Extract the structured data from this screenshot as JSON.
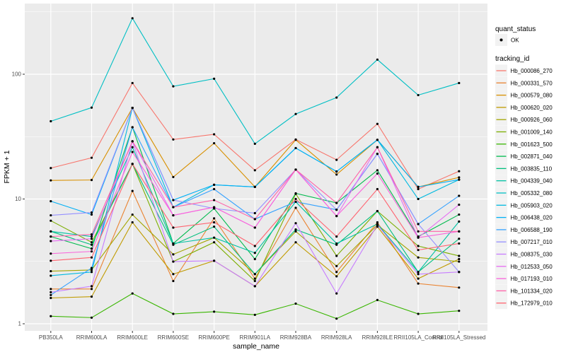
{
  "figure": {
    "kind": "ggplot2 line chart",
    "background": "#FFFFFF"
  },
  "axes": {
    "x_title": "sample_name",
    "y_title": "FPKM + 1",
    "y_tick_labels": [
      "1",
      "10",
      "100"
    ]
  },
  "legend": {
    "quant_status": {
      "title": "quant_status",
      "items": [
        {
          "label": "OK",
          "marker": "point",
          "color": "#000000"
        }
      ]
    },
    "tracking_id": {
      "title": "tracking_id"
    }
  },
  "chart_data": {
    "type": "line",
    "title": "",
    "xlabel": "sample_name",
    "ylabel": "FPKM + 1",
    "y_scale": "log10",
    "y_ticks": [
      1,
      10,
      100
    ],
    "y_minor_ticks": [
      3.1623,
      31.623,
      316.23
    ],
    "ylim": [
      1,
      350
    ],
    "grid": true,
    "legend_position": "right",
    "panel_bg": "#EBEBEB",
    "grid_color": "#FFFFFF",
    "tick_color": "#333333",
    "tick_label_color": "#4D4D4D",
    "point_color": "#000000",
    "legend_key_bg": "#F2F2F2",
    "x_categories": [
      "PB350LA",
      "RRIM600LA",
      "RRIM600LE",
      "RRIM600SE",
      "RRIM600PE",
      "RRIM901LA",
      "RRIM928BA",
      "RRIM928LA",
      "RRIM928LE",
      "RRII105LA_Control",
      "RRII105LA_Stressed"
    ],
    "series": [
      {
        "name": "Hb_000086_270",
        "color": "#F8766D",
        "values": [
          17.7,
          21.4,
          85,
          30,
          33,
          17,
          30,
          20.6,
          40,
          12,
          16.7
        ]
      },
      {
        "name": "Hb_000331_570",
        "color": "#EA8331",
        "values": [
          1.9,
          1.9,
          11.6,
          2.2,
          7.0,
          2.3,
          8.5,
          2.6,
          6.5,
          2.1,
          1.95
        ]
      },
      {
        "name": "Hb_000579_080",
        "color": "#D89000",
        "values": [
          14.1,
          14.2,
          53.7,
          15,
          28,
          12.5,
          29.8,
          15.7,
          29.8,
          12.5,
          14.9
        ]
      },
      {
        "name": "Hb_000620_020",
        "color": "#C09B00",
        "values": [
          1.61,
          1.65,
          6.5,
          2.5,
          3.2,
          2.0,
          4.5,
          2.4,
          6.0,
          2.3,
          3.3
        ]
      },
      {
        "name": "Hb_000926_060",
        "color": "#A3A500",
        "values": [
          2.64,
          2.7,
          7.5,
          3.6,
          4.9,
          2.5,
          5.5,
          2.9,
          6.2,
          3.4,
          3.15
        ]
      },
      {
        "name": "Hb_001009_140",
        "color": "#7CAE00",
        "values": [
          6.7,
          4.5,
          19.1,
          3.15,
          4.5,
          2.2,
          11,
          3.5,
          8.0,
          4.2,
          3.5
        ]
      },
      {
        "name": "Hb_001623_500",
        "color": "#39B600",
        "values": [
          1.15,
          1.12,
          1.75,
          1.2,
          1.25,
          1.18,
          1.45,
          1.1,
          1.55,
          1.2,
          1.27
        ]
      },
      {
        "name": "Hb_002871_040",
        "color": "#00BB4E",
        "values": [
          5.0,
          4.0,
          37.6,
          4.4,
          8.4,
          3.3,
          11.1,
          9.3,
          17,
          5.0,
          7.5
        ]
      },
      {
        "name": "Hb_003835_110",
        "color": "#00BF7D",
        "values": [
          5.5,
          4.3,
          19.1,
          4.3,
          6.0,
          2.5,
          5.7,
          4.3,
          8.0,
          2.6,
          4.8
        ]
      },
      {
        "name": "Hb_004339_040",
        "color": "#00C1A3",
        "values": [
          5.5,
          5.0,
          26,
          4.4,
          4.9,
          3.7,
          9.5,
          4.4,
          6.3,
          2.6,
          6.6
        ]
      },
      {
        "name": "Hb_005332_080",
        "color": "#00BFC4",
        "values": [
          42,
          54,
          281,
          80,
          92,
          27.7,
          48,
          65,
          131,
          68,
          85
        ]
      },
      {
        "name": "Hb_005903_020",
        "color": "#00BAE0",
        "values": [
          2.43,
          2.6,
          53.7,
          8.6,
          13,
          12.5,
          25.6,
          16.6,
          29.8,
          10,
          14.3
        ]
      },
      {
        "name": "Hb_006438_020",
        "color": "#00B0F6",
        "values": [
          9.6,
          7.5,
          53.7,
          9.8,
          13,
          12.5,
          25.6,
          16.6,
          29.8,
          12.5,
          14.3
        ]
      },
      {
        "name": "Hb_006588_190",
        "color": "#35A2FF",
        "values": [
          1.7,
          2.8,
          37.6,
          8.6,
          12,
          6.9,
          9.5,
          8.2,
          23,
          6.3,
          10.6
        ]
      },
      {
        "name": "Hb_007217_010",
        "color": "#9590FF",
        "values": [
          7.4,
          7.8,
          53.7,
          9.8,
          8.4,
          7.7,
          17.2,
          8.2,
          23,
          6.3,
          2.6
        ]
      },
      {
        "name": "Hb_008375_030",
        "color": "#C77CFF",
        "values": [
          1.79,
          2.0,
          29,
          3.15,
          3.2,
          2.0,
          6.4,
          1.75,
          6.2,
          2.5,
          2.6
        ]
      },
      {
        "name": "Hb_012533_050",
        "color": "#E76BF3",
        "values": [
          4.6,
          4.8,
          29,
          7.4,
          8.6,
          5.9,
          17.2,
          7.3,
          26,
          4.9,
          9.0
        ]
      },
      {
        "name": "Hb_017193_010",
        "color": "#FA62DB",
        "values": [
          3.65,
          3.8,
          23.8,
          7.4,
          8.6,
          5.9,
          17.2,
          7.3,
          16,
          4.9,
          5.5
        ]
      },
      {
        "name": "Hb_101334_020",
        "color": "#FF62A8",
        "values": [
          5.0,
          5.2,
          29,
          8.6,
          9.8,
          6.9,
          17.2,
          9.3,
          26,
          5.5,
          5.5
        ]
      },
      {
        "name": "Hb_172979_010",
        "color": "#FF6370",
        "values": [
          3.2,
          3.4,
          19.1,
          5.9,
          6.5,
          4.2,
          10,
          5.0,
          12,
          3.9,
          4.4
        ]
      }
    ]
  }
}
